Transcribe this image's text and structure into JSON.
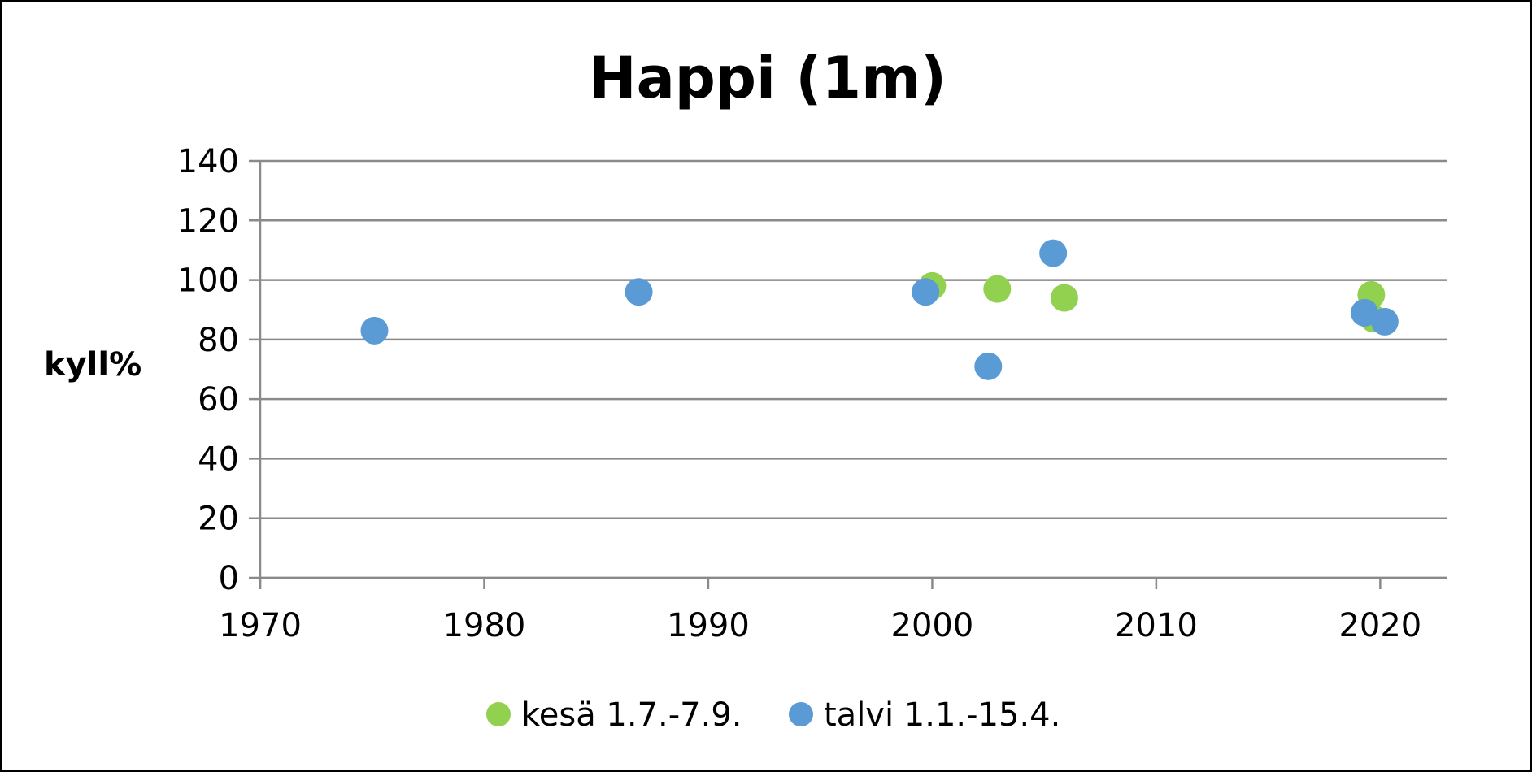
{
  "chart_data": {
    "type": "scatter",
    "title": "Happi (1m)",
    "xlabel": "",
    "ylabel": "kyll%",
    "xlim": [
      1970,
      2023
    ],
    "ylim": [
      0,
      140
    ],
    "xticks": [
      "1970",
      "1980",
      "1990",
      "2000",
      "2010",
      "2020"
    ],
    "yticks": [
      "0",
      "20",
      "40",
      "60",
      "80",
      "100",
      "120",
      "140"
    ],
    "grid": true,
    "legend_position": "bottom",
    "series": [
      {
        "name": "kesä 1.7.-7.9.",
        "color": "#92d050",
        "points": [
          {
            "x": 2000.0,
            "y": 98
          },
          {
            "x": 2002.9,
            "y": 97
          },
          {
            "x": 2005.9,
            "y": 94
          },
          {
            "x": 2019.7,
            "y": 87
          },
          {
            "x": 2019.6,
            "y": 95
          }
        ]
      },
      {
        "name": "talvi 1.1.-15.4.",
        "color": "#5b9bd5",
        "points": [
          {
            "x": 1975.1,
            "y": 83
          },
          {
            "x": 1986.9,
            "y": 96
          },
          {
            "x": 1999.7,
            "y": 96
          },
          {
            "x": 2002.5,
            "y": 71
          },
          {
            "x": 2005.4,
            "y": 109
          },
          {
            "x": 2019.3,
            "y": 89
          },
          {
            "x": 2020.2,
            "y": 86
          }
        ]
      }
    ]
  }
}
